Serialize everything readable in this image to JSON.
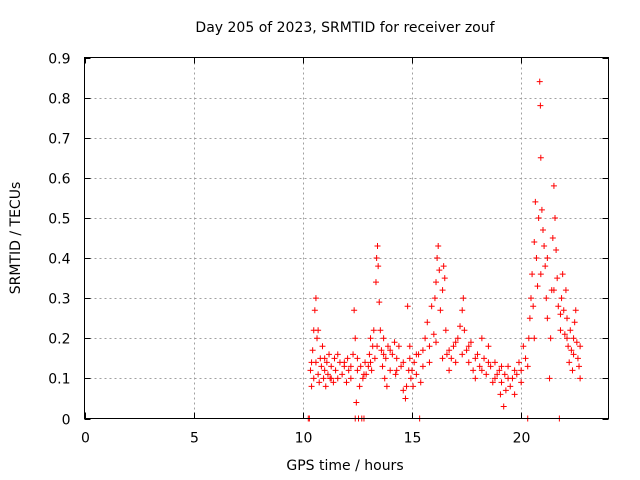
{
  "chart_data": {
    "type": "scatter",
    "title": "Day 205 of 2023, SRMTID for receiver zouf",
    "xlabel": "GPS time / hours",
    "ylabel": "SRMTID / TECUs",
    "xlim": [
      0,
      24
    ],
    "ylim": [
      0,
      0.9
    ],
    "xticks": [
      0,
      5,
      10,
      15,
      20
    ],
    "xtick_labels": [
      "0",
      "5",
      "10",
      "15",
      "20"
    ],
    "yticks": [
      0,
      0.1,
      0.2,
      0.3,
      0.4,
      0.5,
      0.6,
      0.7,
      0.8,
      0.9
    ],
    "ytick_labels": [
      "0",
      "0.1",
      "0.2",
      "0.3",
      "0.4",
      "0.5",
      "0.6",
      "0.7",
      "0.8",
      "0.9"
    ],
    "grid": true,
    "marker": "plus",
    "color": "#ff0000",
    "series": [
      {
        "name": "SRMTID",
        "points": [
          [
            10.25,
            0.0
          ],
          [
            10.3,
            0.0
          ],
          [
            10.35,
            0.12
          ],
          [
            10.4,
            0.08
          ],
          [
            10.45,
            0.17
          ],
          [
            10.5,
            0.1
          ],
          [
            10.5,
            0.22
          ],
          [
            10.55,
            0.27
          ],
          [
            10.6,
            0.3
          ],
          [
            10.6,
            0.14
          ],
          [
            10.65,
            0.2
          ],
          [
            10.7,
            0.11
          ],
          [
            10.75,
            0.09
          ],
          [
            10.8,
            0.15
          ],
          [
            10.85,
            0.13
          ],
          [
            10.9,
            0.18
          ],
          [
            10.95,
            0.1
          ],
          [
            11.0,
            0.12
          ],
          [
            11.05,
            0.08
          ],
          [
            11.1,
            0.14
          ],
          [
            11.15,
            0.11
          ],
          [
            11.2,
            0.16
          ],
          [
            11.25,
            0.1
          ],
          [
            11.3,
            0.13
          ],
          [
            11.4,
            0.09
          ],
          [
            11.45,
            0.15
          ],
          [
            11.5,
            0.12
          ],
          [
            11.6,
            0.1
          ],
          [
            11.7,
            0.14
          ],
          [
            11.8,
            0.11
          ],
          [
            11.9,
            0.13
          ],
          [
            12.0,
            0.09
          ],
          [
            12.05,
            0.15
          ],
          [
            12.1,
            0.12
          ],
          [
            12.2,
            0.1
          ],
          [
            12.3,
            0.16
          ],
          [
            12.35,
            0.27
          ],
          [
            12.4,
            0.2
          ],
          [
            12.4,
            0.0
          ],
          [
            12.45,
            0.04
          ],
          [
            12.5,
            0.12
          ],
          [
            12.55,
            0.0
          ],
          [
            12.6,
            0.08
          ],
          [
            12.65,
            0.13
          ],
          [
            12.7,
            0.0
          ],
          [
            12.75,
            0.1
          ],
          [
            12.8,
            0.0
          ],
          [
            12.85,
            0.14
          ],
          [
            12.9,
            0.11
          ],
          [
            13.0,
            0.13
          ],
          [
            13.05,
            0.16
          ],
          [
            13.1,
            0.2
          ],
          [
            13.15,
            0.12
          ],
          [
            13.2,
            0.18
          ],
          [
            13.25,
            0.22
          ],
          [
            13.3,
            0.15
          ],
          [
            13.35,
            0.34
          ],
          [
            13.38,
            0.4
          ],
          [
            13.42,
            0.43
          ],
          [
            13.45,
            0.38
          ],
          [
            13.5,
            0.29
          ],
          [
            13.55,
            0.22
          ],
          [
            13.6,
            0.17
          ],
          [
            13.65,
            0.13
          ],
          [
            13.7,
            0.2
          ],
          [
            13.75,
            0.1
          ],
          [
            13.8,
            0.15
          ],
          [
            13.85,
            0.08
          ],
          [
            13.9,
            0.18
          ],
          [
            14.0,
            0.12
          ],
          [
            14.1,
            0.16
          ],
          [
            14.2,
            0.19
          ],
          [
            14.25,
            0.11
          ],
          [
            14.3,
            0.15
          ],
          [
            14.4,
            0.18
          ],
          [
            14.5,
            0.13
          ],
          [
            14.6,
            0.07
          ],
          [
            14.7,
            0.05
          ],
          [
            14.75,
            0.08
          ],
          [
            14.8,
            0.28
          ],
          [
            14.85,
            0.12
          ],
          [
            14.9,
            0.15
          ],
          [
            14.95,
            0.1
          ],
          [
            15.0,
            0.12
          ],
          [
            15.05,
            0.08
          ],
          [
            15.1,
            0.14
          ],
          [
            15.2,
            0.11
          ],
          [
            15.3,
            0.16
          ],
          [
            15.35,
            0.0
          ],
          [
            15.4,
            0.09
          ],
          [
            15.5,
            0.13
          ],
          [
            15.6,
            0.2
          ],
          [
            15.7,
            0.24
          ],
          [
            15.8,
            0.18
          ],
          [
            15.9,
            0.28
          ],
          [
            16.0,
            0.21
          ],
          [
            16.05,
            0.3
          ],
          [
            16.1,
            0.34
          ],
          [
            16.15,
            0.4
          ],
          [
            16.2,
            0.43
          ],
          [
            16.25,
            0.37
          ],
          [
            16.3,
            0.27
          ],
          [
            16.4,
            0.32
          ],
          [
            16.45,
            0.38
          ],
          [
            16.5,
            0.35
          ],
          [
            16.55,
            0.22
          ],
          [
            16.6,
            0.16
          ],
          [
            16.7,
            0.12
          ],
          [
            16.8,
            0.15
          ],
          [
            16.9,
            0.18
          ],
          [
            17.0,
            0.14
          ],
          [
            17.1,
            0.2
          ],
          [
            17.2,
            0.23
          ],
          [
            17.3,
            0.27
          ],
          [
            17.35,
            0.3
          ],
          [
            17.4,
            0.22
          ],
          [
            17.5,
            0.17
          ],
          [
            17.6,
            0.14
          ],
          [
            17.7,
            0.19
          ],
          [
            17.8,
            0.12
          ],
          [
            17.9,
            0.1
          ],
          [
            18.0,
            0.16
          ],
          [
            18.1,
            0.13
          ],
          [
            18.2,
            0.2
          ],
          [
            18.3,
            0.15
          ],
          [
            18.4,
            0.11
          ],
          [
            18.5,
            0.18
          ],
          [
            18.6,
            0.13
          ],
          [
            18.7,
            0.09
          ],
          [
            18.8,
            0.14
          ],
          [
            18.9,
            0.11
          ],
          [
            19.0,
            0.12
          ],
          [
            19.05,
            0.06
          ],
          [
            19.1,
            0.09
          ],
          [
            19.2,
            0.03
          ],
          [
            19.25,
            0.11
          ],
          [
            19.3,
            0.07
          ],
          [
            19.4,
            0.13
          ],
          [
            19.5,
            0.08
          ],
          [
            19.6,
            0.1
          ],
          [
            19.7,
            0.06
          ],
          [
            19.8,
            0.11
          ],
          [
            19.9,
            0.14
          ],
          [
            20.0,
            0.12
          ],
          [
            20.1,
            0.18
          ],
          [
            20.2,
            0.15
          ],
          [
            20.3,
            0.0
          ],
          [
            20.35,
            0.2
          ],
          [
            20.4,
            0.25
          ],
          [
            20.45,
            0.3
          ],
          [
            20.5,
            0.36
          ],
          [
            20.55,
            0.28
          ],
          [
            20.6,
            0.44
          ],
          [
            20.65,
            0.54
          ],
          [
            20.7,
            0.4
          ],
          [
            20.75,
            0.33
          ],
          [
            20.8,
            0.5
          ],
          [
            20.85,
            0.84
          ],
          [
            20.88,
            0.78
          ],
          [
            20.9,
            0.65
          ],
          [
            20.95,
            0.52
          ],
          [
            21.0,
            0.47
          ],
          [
            21.05,
            0.43
          ],
          [
            21.1,
            0.38
          ],
          [
            21.15,
            0.3
          ],
          [
            21.2,
            0.25
          ],
          [
            21.3,
            0.1
          ],
          [
            21.35,
            0.2
          ],
          [
            21.4,
            0.32
          ],
          [
            21.45,
            0.45
          ],
          [
            21.5,
            0.58
          ],
          [
            21.55,
            0.5
          ],
          [
            21.6,
            0.42
          ],
          [
            21.65,
            0.35
          ],
          [
            21.7,
            0.28
          ],
          [
            21.75,
            0.0
          ],
          [
            21.8,
            0.22
          ],
          [
            21.85,
            0.3
          ],
          [
            21.9,
            0.36
          ],
          [
            21.95,
            0.27
          ],
          [
            22.0,
            0.21
          ],
          [
            22.05,
            0.32
          ],
          [
            22.1,
            0.25
          ],
          [
            22.15,
            0.18
          ],
          [
            22.2,
            0.14
          ],
          [
            22.25,
            0.22
          ],
          [
            22.3,
            0.17
          ],
          [
            22.35,
            0.12
          ],
          [
            22.4,
            0.2
          ],
          [
            22.45,
            0.24
          ],
          [
            22.5,
            0.27
          ],
          [
            22.55,
            0.19
          ],
          [
            22.6,
            0.15
          ],
          [
            22.65,
            0.13
          ],
          [
            22.7,
            0.1
          ],
          [
            10.4,
            0.14
          ],
          [
            10.7,
            0.22
          ],
          [
            11.0,
            0.15
          ],
          [
            11.3,
            0.1
          ],
          [
            11.6,
            0.16
          ],
          [
            11.9,
            0.14
          ],
          [
            12.2,
            0.13
          ],
          [
            12.5,
            0.15
          ],
          [
            12.8,
            0.11
          ],
          [
            13.1,
            0.14
          ],
          [
            13.4,
            0.18
          ],
          [
            13.7,
            0.16
          ],
          [
            14.0,
            0.17
          ],
          [
            14.3,
            0.12
          ],
          [
            14.6,
            0.14
          ],
          [
            14.9,
            0.18
          ],
          [
            15.2,
            0.16
          ],
          [
            15.5,
            0.17
          ],
          [
            15.8,
            0.14
          ],
          [
            16.1,
            0.19
          ],
          [
            16.4,
            0.15
          ],
          [
            16.7,
            0.17
          ],
          [
            17.0,
            0.19
          ],
          [
            17.3,
            0.16
          ],
          [
            17.6,
            0.18
          ],
          [
            17.9,
            0.15
          ],
          [
            18.2,
            0.12
          ],
          [
            18.5,
            0.14
          ],
          [
            18.8,
            0.1
          ],
          [
            19.1,
            0.13
          ],
          [
            19.4,
            0.1
          ],
          [
            19.7,
            0.12
          ],
          [
            20.0,
            0.09
          ],
          [
            20.3,
            0.13
          ],
          [
            20.6,
            0.2
          ],
          [
            20.9,
            0.36
          ],
          [
            21.2,
            0.4
          ],
          [
            21.5,
            0.32
          ],
          [
            21.8,
            0.26
          ],
          [
            22.1,
            0.2
          ],
          [
            22.4,
            0.16
          ],
          [
            22.7,
            0.18
          ]
        ]
      }
    ]
  }
}
